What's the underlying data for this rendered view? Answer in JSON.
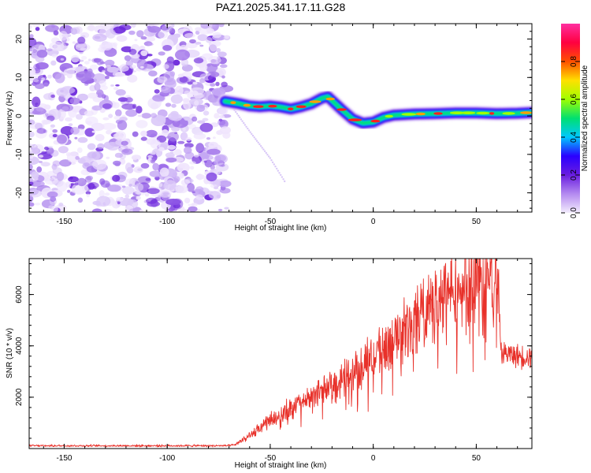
{
  "title": "PAZ1.2025.341.17.11.G28",
  "chart_data": [
    {
      "type": "heatmap",
      "name": "spectrogram",
      "xlabel": "Height of straight line (km)",
      "ylabel": "Frequency (Hz)",
      "xlim": [
        -167,
        77
      ],
      "ylim": [
        -25,
        24
      ],
      "xticks": [
        -150,
        -100,
        -50,
        0,
        50
      ],
      "yticks": [
        -20,
        -10,
        0,
        10,
        20
      ],
      "noise_region_x": [
        -167,
        -71
      ],
      "signal_line": {
        "x": [
          -72,
          -65,
          -60,
          -55,
          -50,
          -45,
          -40,
          -35,
          -30,
          -25,
          -22,
          -20,
          -15,
          -10,
          -5,
          0,
          5,
          10,
          20,
          30,
          40,
          50,
          60,
          70,
          77
        ],
        "y": [
          3.8,
          3.2,
          2.6,
          2.4,
          2.6,
          2.3,
          1.8,
          2.4,
          3.2,
          4.6,
          5.0,
          4.0,
          1.5,
          -0.8,
          -1.9,
          -1.6,
          -0.4,
          0.2,
          0.5,
          0.6,
          0.8,
          0.8,
          0.6,
          0.7,
          0.9
        ]
      },
      "ghost_trace": {
        "x": [
          -68,
          -60,
          -50,
          -43
        ],
        "y": [
          2.0,
          -4.0,
          -11.0,
          -17.0
        ]
      }
    },
    {
      "type": "line",
      "name": "snr",
      "xlabel": "Height of straight line (km)",
      "ylabel": "SNR (10 * v/v)",
      "xlim": [
        -167,
        77
      ],
      "ylim": [
        0,
        7400
      ],
      "xticks": [
        -150,
        -100,
        -50,
        0,
        50
      ],
      "yticks": [
        2000,
        4000,
        6000
      ],
      "color": "#e8312a",
      "envelope": {
        "x": [
          -167,
          -70,
          -67,
          -60,
          -55,
          -50,
          -40,
          -30,
          -20,
          -10,
          0,
          10,
          20,
          30,
          40,
          50,
          55,
          60,
          61,
          62,
          65,
          70,
          77
        ],
        "y": [
          110,
          110,
          150,
          520,
          800,
          1100,
          1600,
          2000,
          2500,
          3000,
          3600,
          4300,
          5000,
          5700,
          6200,
          6400,
          6500,
          6600,
          6100,
          3700,
          3700,
          3600,
          3600
        ]
      }
    }
  ],
  "colorbar": {
    "label": "Normalized spectral amplitude",
    "range": [
      0,
      1
    ],
    "ticks": [
      0.0,
      0.2,
      0.4,
      0.6,
      0.8
    ],
    "tick_labels": [
      "0.0",
      "0.2",
      "0.4",
      "0.6",
      "0.8"
    ],
    "colors": [
      "#f3ecfd",
      "#b48af0",
      "#6a1de0",
      "#2a00ff",
      "#00c8ff",
      "#00e070",
      "#a0ff00",
      "#ffe000",
      "#ff5000",
      "#ff0040",
      "#ff2fa0"
    ]
  }
}
